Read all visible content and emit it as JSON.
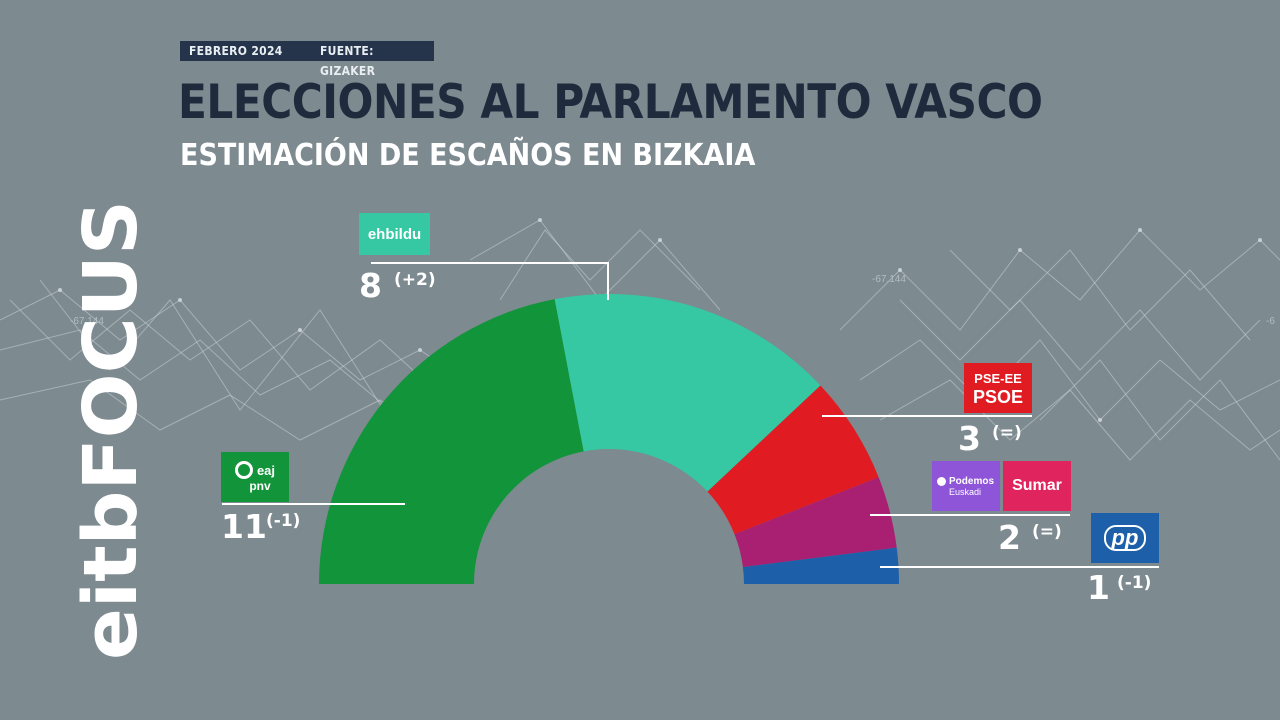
{
  "header": {
    "date_label": "FEBRERO 2024",
    "source_label": "FUENTE: GIZAKER",
    "title": "ELECCIONES AL PARLAMENTO VASCO",
    "subtitle": "ESTIMACIÓN DE ESCAÑOS EN BIZKAIA"
  },
  "brand": {
    "text": "eitbFOCUS",
    "color": "#ffffff"
  },
  "background": {
    "ticker_labels": [
      "-67.144",
      "-67.144",
      "-6"
    ]
  },
  "chart_data": {
    "type": "pie",
    "subtype": "parliament-half-donut",
    "title": "ESTIMACIÓN DE ESCAÑOS EN BIZKAIA",
    "total_seats": 25,
    "series": [
      {
        "party": "EAJ-PNV",
        "seats": 11,
        "change": "(-1)",
        "color": "#12943a"
      },
      {
        "party": "EH Bildu",
        "seats": 8,
        "change": "(+2)",
        "color": "#35c8a3"
      },
      {
        "party": "PSE-EE PSOE",
        "seats": 3,
        "change": "(=)",
        "color": "#e11b22"
      },
      {
        "party": "Podemos Euskadi / Sumar",
        "seats": 2,
        "change": "(=)",
        "color": "#a91f72"
      },
      {
        "party": "PP",
        "seats": 1,
        "change": "(-1)",
        "color": "#1d5fa8"
      }
    ]
  },
  "logos": {
    "ehbildu": "ehbildu",
    "eaj_top": "eaj",
    "eaj_bottom": "pnv",
    "psoe_top": "PSE-EE",
    "psoe_bottom": "PSOE",
    "podemos_top": "Podemos",
    "podemos_bottom": "Euskadi",
    "sumar": "Sumar",
    "pp": "pp"
  }
}
